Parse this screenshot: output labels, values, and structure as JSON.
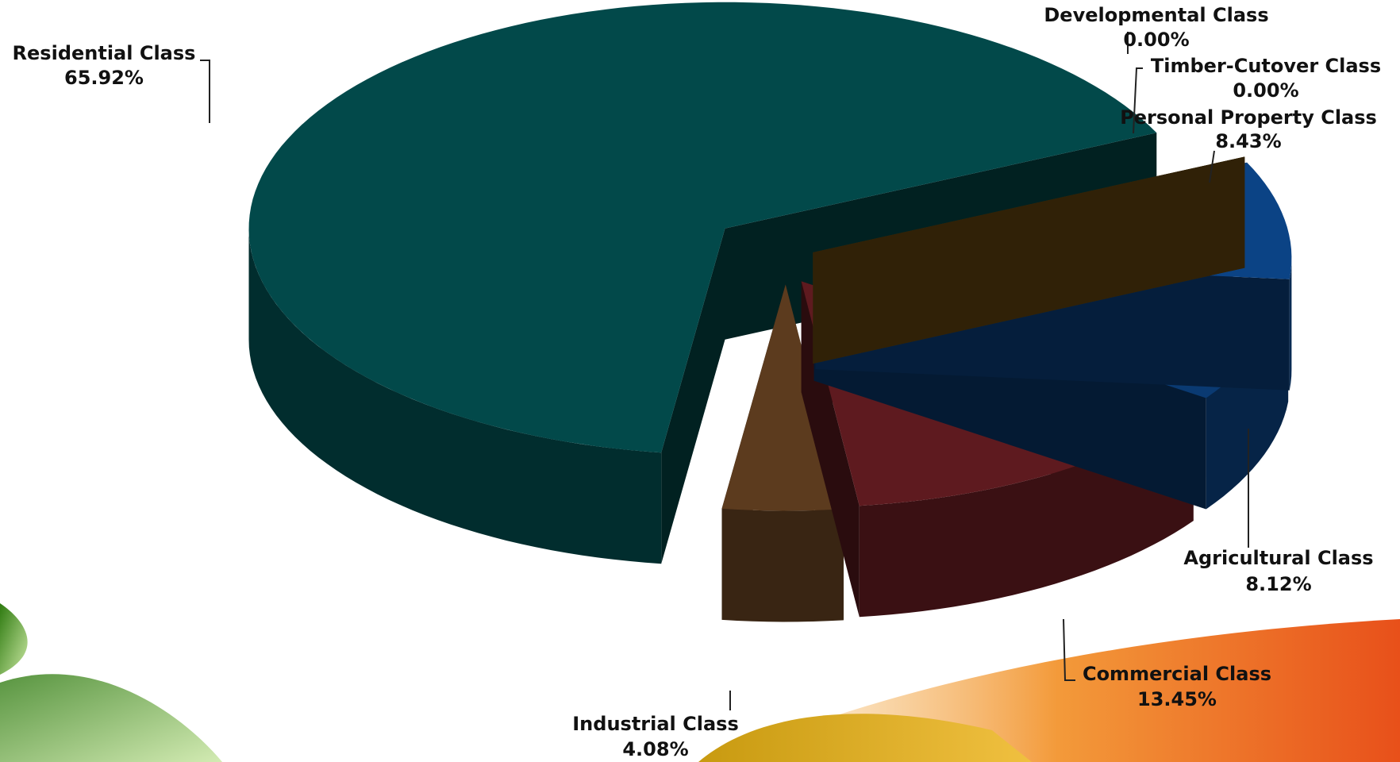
{
  "chart_data": {
    "type": "pie",
    "categories": [
      "Residential Class",
      "Industrial Class",
      "Commercial Class",
      "Agricultural Class",
      "Personal Property Class",
      "Timber-Cutover Class",
      "Developmental Class"
    ],
    "values": [
      65.92,
      4.08,
      13.45,
      8.12,
      8.43,
      0.0,
      0.0
    ],
    "value_labels": [
      "65.92%",
      "4.08%",
      "13.45%",
      "8.12%",
      "8.43%",
      "0.00%",
      "0.00%"
    ],
    "colors": [
      "#02494a",
      "#5c3b1e",
      "#5e1a1f",
      "#0a3a72",
      "#0b4385",
      "#8a6a1a",
      "#6b4a10"
    ]
  }
}
